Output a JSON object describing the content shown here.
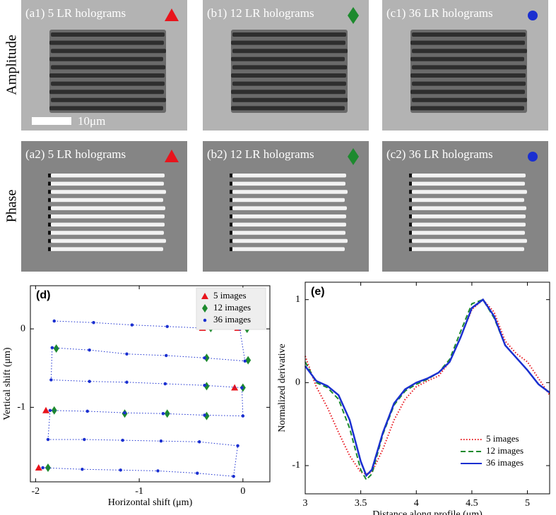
{
  "images": {
    "row_labels": [
      "Amplitude",
      "Phase"
    ],
    "panels": [
      [
        "(a1) 5 LR holograms",
        "(b1) 12 LR holograms",
        "(c1) 36 LR holograms"
      ],
      [
        "(a2) 5 LR holograms",
        "(b2) 12 LR holograms",
        "(c2) 36 LR holograms"
      ]
    ],
    "scale_bar": "10μm"
  },
  "chart_data": [
    {
      "type": "scatter",
      "title": "(d)",
      "xlabel": "Horizontal shift (μm)",
      "ylabel": "Vertical shift (μm)",
      "xlim": [
        -2.05,
        0.26
      ],
      "ylim": [
        -1.95,
        0.55
      ],
      "xticks": [
        -2,
        -1,
        0
      ],
      "yticks": [
        -1,
        0
      ],
      "legend": "upper right",
      "series": [
        {
          "name": "5 images",
          "color": "#e8141c",
          "marker": "triangle",
          "line": "none",
          "x": [
            -0.39,
            -0.05,
            -0.08,
            -1.9,
            -1.97
          ],
          "y": [
            0.01,
            0.01,
            -0.75,
            -1.04,
            -1.77
          ]
        },
        {
          "name": "12 images",
          "color": "#1d8a2e",
          "marker": "diamond",
          "line": "none",
          "x": [
            -0.31,
            0.04,
            -1.8,
            -0.35,
            0.05,
            -0.35,
            0.0,
            -1.82,
            -1.14,
            -0.73,
            -0.35,
            -1.88
          ],
          "y": [
            0.01,
            0.0,
            -0.25,
            -0.37,
            -0.4,
            -0.73,
            -0.75,
            -1.04,
            -1.08,
            -1.08,
            -1.11,
            -1.77
          ]
        },
        {
          "name": "36 images",
          "color": "#1a2fd0",
          "marker": "circle",
          "line": "dotted",
          "x": [
            -1.82,
            -1.44,
            -1.07,
            -0.73,
            -0.38,
            -0.03,
            0.02,
            -0.37,
            -0.74,
            -1.12,
            -1.48,
            -1.84,
            -1.85,
            -1.48,
            -1.12,
            -0.75,
            -0.37,
            -0.01,
            0.0,
            -0.37,
            -0.77,
            -1.14,
            -1.5,
            -1.86,
            -1.88,
            -1.53,
            -1.16,
            -0.79,
            -0.42,
            -0.05,
            -0.09,
            -0.44,
            -0.82,
            -1.18,
            -1.55,
            -1.93
          ],
          "y": [
            0.1,
            0.08,
            0.05,
            0.03,
            0.01,
            0.0,
            -0.41,
            -0.37,
            -0.34,
            -0.32,
            -0.27,
            -0.24,
            -0.65,
            -0.67,
            -0.68,
            -0.7,
            -0.72,
            -0.75,
            -1.11,
            -1.1,
            -1.08,
            -1.07,
            -1.05,
            -1.04,
            -1.41,
            -1.41,
            -1.42,
            -1.43,
            -1.44,
            -1.49,
            -1.88,
            -1.84,
            -1.81,
            -1.8,
            -1.79,
            -1.77
          ]
        }
      ]
    },
    {
      "type": "line",
      "title": "(e)",
      "xlabel": "Distance along profile (μm)",
      "ylabel": "Normalized derivative",
      "xlim": [
        3,
        5.2
      ],
      "ylim": [
        -1.34,
        1.21
      ],
      "xticks": [
        3,
        3.5,
        4,
        4.5,
        5
      ],
      "yticks": [
        -1,
        0,
        1
      ],
      "legend": "lower right",
      "x": [
        3.0,
        3.1,
        3.2,
        3.3,
        3.4,
        3.5,
        3.55,
        3.6,
        3.7,
        3.8,
        3.9,
        4.0,
        4.1,
        4.2,
        4.3,
        4.4,
        4.5,
        4.6,
        4.7,
        4.8,
        4.9,
        5.0,
        5.1,
        5.2
      ],
      "series": [
        {
          "name": "5 images",
          "color": "#e8141c",
          "dash": "dotted",
          "values": [
            0.32,
            -0.05,
            -0.3,
            -0.6,
            -0.88,
            -1.08,
            -1.1,
            -1.08,
            -0.8,
            -0.45,
            -0.2,
            -0.05,
            0.02,
            0.08,
            0.25,
            0.55,
            0.88,
            1.0,
            0.85,
            0.5,
            0.35,
            0.25,
            0.05,
            -0.15
          ]
        },
        {
          "name": "12 images",
          "color": "#1d8a2e",
          "dash": "dashed",
          "values": [
            0.25,
            0.0,
            -0.06,
            -0.2,
            -0.55,
            -1.05,
            -1.17,
            -1.1,
            -0.62,
            -0.27,
            -0.1,
            -0.02,
            0.04,
            0.12,
            0.28,
            0.62,
            0.95,
            1.0,
            0.78,
            0.45,
            0.3,
            0.15,
            -0.02,
            -0.12
          ]
        },
        {
          "name": "36 images",
          "color": "#1a2fd0",
          "dash": "solid",
          "values": [
            0.2,
            0.02,
            -0.04,
            -0.15,
            -0.45,
            -0.95,
            -1.12,
            -1.05,
            -0.6,
            -0.25,
            -0.08,
            0.0,
            0.05,
            0.12,
            0.25,
            0.55,
            0.9,
            1.0,
            0.8,
            0.45,
            0.3,
            0.15,
            -0.02,
            -0.12
          ]
        }
      ]
    }
  ]
}
